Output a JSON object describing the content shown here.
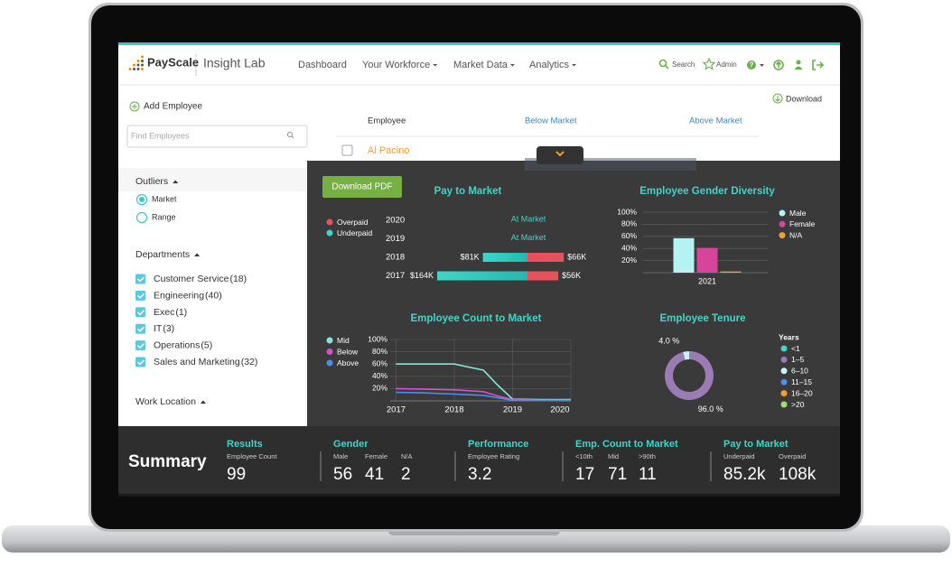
{
  "nav": {
    "brand": "PayScale",
    "product": "Insight Lab",
    "links": [
      "Dashboard",
      "Your Workforce",
      "Market Data",
      "Analytics"
    ],
    "search": "Search",
    "admin": "Admin"
  },
  "sidebar": {
    "add_employee": "Add Employee",
    "search_placeholder": "Find Employees",
    "outliers": {
      "title": "Outliers",
      "options": [
        "Market",
        "Range"
      ]
    },
    "departments": {
      "title": "Departments",
      "items": [
        {
          "name": "Customer Service",
          "count": "(18)"
        },
        {
          "name": "Engineering",
          "count": "(40)"
        },
        {
          "name": "Exec",
          "count": "(1)"
        },
        {
          "name": "IT",
          "count": "(3)"
        },
        {
          "name": "Operations",
          "count": "(5)"
        },
        {
          "name": "Sales and Marketing",
          "count": "(32)"
        }
      ]
    },
    "work_location": {
      "title": "Work Location"
    }
  },
  "table": {
    "download": "Download",
    "columns": [
      "Employee",
      "Below Market",
      "Above Market"
    ],
    "rows": [
      [
        "Al Pacino"
      ]
    ]
  },
  "overlay": {
    "download_pdf": "Download PDF"
  },
  "chart_data": [
    {
      "type": "bar",
      "orientation": "horizontal",
      "title": "Pay to Market",
      "categories": [
        "2020",
        "2019",
        "2018",
        "2017"
      ],
      "annotations": [
        "At Market",
        "At Market",
        null,
        null
      ],
      "series": [
        {
          "name": "Overpaid",
          "color": "#e8505b",
          "values": [
            null,
            null,
            66000,
            56000
          ],
          "value_labels": [
            null,
            null,
            "$66K",
            "$56K"
          ]
        },
        {
          "name": "Underpaid",
          "color": "#3dd6c8",
          "values": [
            null,
            null,
            81000,
            164000
          ],
          "value_labels": [
            null,
            null,
            "$81K",
            "$164K"
          ]
        }
      ]
    },
    {
      "type": "bar",
      "title": "Employee Gender Diversity",
      "categories": [
        "2021"
      ],
      "ylim": [
        0,
        100
      ],
      "yticks": [
        {
          "value": 20,
          "label": "20%"
        },
        {
          "value": 40,
          "label": "40%"
        },
        {
          "value": 60,
          "label": "60%"
        },
        {
          "value": 80,
          "label": "80%"
        },
        {
          "value": 100,
          "label": "100%"
        }
      ],
      "grid": true,
      "legend": "right",
      "series": [
        {
          "name": "Male",
          "color": "#b5f3f3",
          "values": [
            57
          ]
        },
        {
          "name": "Female",
          "color": "#d6449c",
          "values": [
            41
          ]
        },
        {
          "name": "N/A",
          "color": "#f0a030",
          "values": [
            2
          ]
        }
      ]
    },
    {
      "type": "line",
      "title": "Employee Count to Market",
      "x": [
        2017,
        2017.5,
        2018,
        2018.5,
        2018.75,
        2019,
        2019.5,
        2020
      ],
      "xlim": [
        2016.9,
        2020
      ],
      "xticks": [
        2017,
        2018,
        2019,
        2020
      ],
      "ylim": [
        0,
        100
      ],
      "yticks": [
        {
          "value": 20,
          "label": "20%"
        },
        {
          "value": 40,
          "label": "40%"
        },
        {
          "value": 60,
          "label": "60%"
        },
        {
          "value": 80,
          "label": "80%"
        },
        {
          "value": 100,
          "label": "100%"
        }
      ],
      "grid": true,
      "legend": "left",
      "series": [
        {
          "name": "Mid",
          "color": "#7fe8dc",
          "values": [
            60,
            60,
            60,
            50,
            25,
            3,
            2,
            2
          ]
        },
        {
          "name": "Below",
          "color": "#d64fd0",
          "values": [
            20,
            19,
            18,
            15,
            8,
            2,
            1,
            1
          ]
        },
        {
          "name": "Above",
          "color": "#4a8ff0",
          "values": [
            14,
            13,
            11,
            9,
            5,
            1,
            1,
            1
          ]
        }
      ]
    },
    {
      "type": "pie",
      "donut": true,
      "title": "Employee Tenure",
      "legend_title": "Years",
      "categories": [
        "<1",
        "1–5",
        "6–10",
        "11–15",
        "16–20",
        ">20"
      ],
      "colors": [
        "#3dd6c8",
        "#9b7bb3",
        "#c8f4f4",
        "#4a8ff0",
        "#f0a030",
        "#a0e070"
      ],
      "values": [
        0,
        96,
        4,
        0,
        0,
        0
      ],
      "value_labels": [
        null,
        "96.0 %",
        "4.0 %",
        null,
        null,
        null
      ]
    }
  ],
  "summary": {
    "title": "Summary",
    "groups": [
      {
        "title": "Results",
        "items": [
          {
            "label": "Employee Count",
            "value": 99
          }
        ]
      },
      {
        "title": "Gender",
        "items": [
          {
            "label": "Male",
            "value": 56
          },
          {
            "label": "Female",
            "value": 41
          },
          {
            "label": "N/A",
            "value": 2
          }
        ]
      },
      {
        "title": "Performance",
        "items": [
          {
            "label": "Employee Rating",
            "value": 3.2
          }
        ]
      },
      {
        "title": "Emp. Count to Market",
        "items": [
          {
            "label": "<10th",
            "value": 17
          },
          {
            "label": "Mid",
            "value": 71
          },
          {
            "label": ">90th",
            "value": 11
          }
        ]
      },
      {
        "title": "Pay to Market",
        "items": [
          {
            "label": "Underpaid",
            "value": "85.2k"
          },
          {
            "label": "Overpaid",
            "value": "108k"
          }
        ]
      }
    ]
  }
}
